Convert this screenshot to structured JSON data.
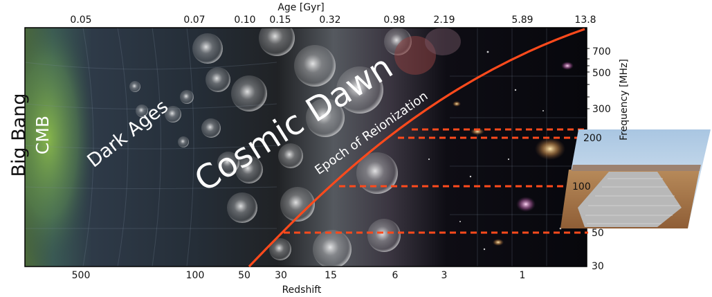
{
  "age_axis": {
    "title": "Age [Gyr]",
    "ticks": [
      "0.05",
      "0.07",
      "0.10",
      "0.15",
      "0.32",
      "0.98",
      "2.19",
      "5.89",
      "13.8"
    ]
  },
  "redshift_axis": {
    "title": "Redshift",
    "ticks": [
      "500",
      "100",
      "50",
      "30",
      "15",
      "6",
      "3",
      "1"
    ]
  },
  "frequency_axis": {
    "title": "Frequency [MHz]",
    "ticks": [
      "700",
      "500",
      "300",
      "200",
      "100",
      "50",
      "30"
    ]
  },
  "labels": {
    "big_bang": "Big Bang",
    "cmb": "CMB",
    "dark_ages": "Dark Ages",
    "cosmic_dawn": "Cosmic Dawn",
    "reionization": "Epoch of Reionization"
  },
  "colors": {
    "history_curve": "#ff4a1c",
    "dashed_lines": "#ff4a1c",
    "text_light": "#ffffff"
  }
}
